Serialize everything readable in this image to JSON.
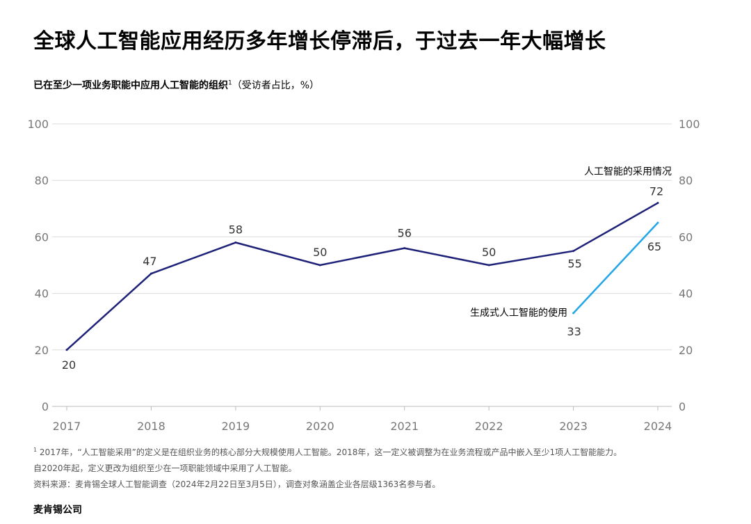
{
  "title": "全球人工智能应用经历多年增长停滞后，于过去一年大幅增长",
  "subtitle": {
    "text": "已在至少一项业务职能中应用人工智能的组织",
    "footnote_mark": "1",
    "unit": "（受访者占比，%）"
  },
  "footnotes": {
    "note_mark": "1",
    "note_line1": "2017年，“人工智能采用”的定义是在组织业务的核心部分大规模使用人工智能。2018年，这一定义被调整为在业务流程或产品中嵌入至少1项人工智能能力。",
    "note_line2": "自2020年起，定义更改为组织至少在一项职能领域中采用了人工智能。",
    "source": "资料来源：麦肯锡全球人工智能调查（2024年2月22日至3月5日），调查对象涵盖企业各层级1363名参与者。"
  },
  "brand": "麦肯锡公司",
  "colors": {
    "series_adoption": "#1d2178",
    "series_genai": "#22a6e8",
    "grid": "#dcdcdc",
    "tick_text": "#777777"
  },
  "chart_data": {
    "type": "line",
    "x": [
      "2017",
      "2018",
      "2019",
      "2020",
      "2021",
      "2022",
      "2023",
      "2024"
    ],
    "ylim": [
      0,
      100
    ],
    "yticks": [
      0,
      20,
      40,
      60,
      80,
      100
    ],
    "grid": true,
    "dual_y_axis_labels": true,
    "series": [
      {
        "name": "人工智能的采用情况",
        "x": [
          "2017",
          "2018",
          "2019",
          "2020",
          "2021",
          "2022",
          "2023",
          "2024"
        ],
        "values": [
          20,
          47,
          58,
          50,
          56,
          50,
          55,
          72
        ]
      },
      {
        "name": "生成式人工智能的使用",
        "x": [
          "2023",
          "2024"
        ],
        "values": [
          33,
          65
        ]
      }
    ]
  }
}
